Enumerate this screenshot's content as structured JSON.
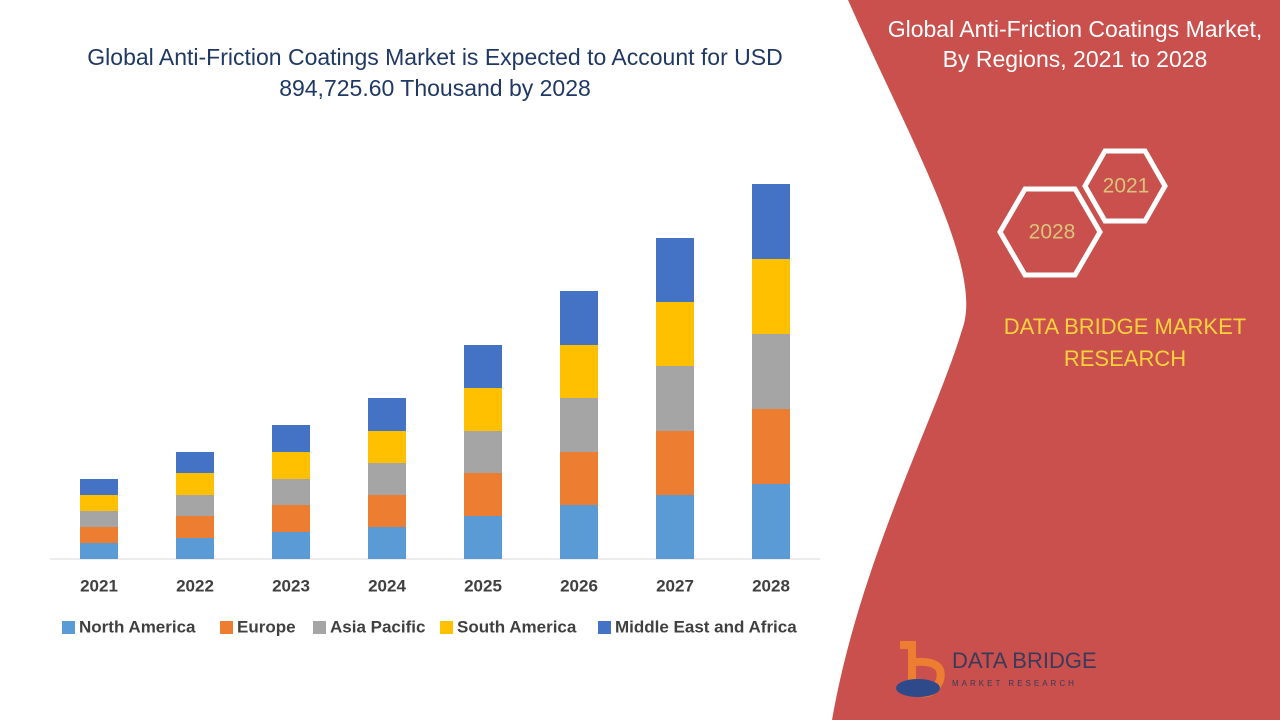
{
  "chart_data": {
    "type": "bar",
    "stacked": true,
    "title": "Global Anti-Friction Coatings Market is Expected to Account for USD 894,725.60 Thousand by 2028",
    "categories": [
      "2021",
      "2022",
      "2023",
      "2024",
      "2025",
      "2026",
      "2027",
      "2028"
    ],
    "series": [
      {
        "name": "North America",
        "color": "#5b9bd5",
        "values": [
          16,
          21,
          27,
          32,
          43,
          54,
          64,
          75
        ]
      },
      {
        "name": "Europe",
        "color": "#ed7d31",
        "values": [
          16,
          22,
          27,
          32,
          43,
          53,
          64,
          75
        ]
      },
      {
        "name": "Asia Pacific",
        "color": "#a5a5a5",
        "values": [
          16,
          21,
          26,
          32,
          42,
          54,
          65,
          75
        ]
      },
      {
        "name": "South America",
        "color": "#ffc000",
        "values": [
          16,
          22,
          27,
          32,
          43,
          53,
          64,
          75
        ]
      },
      {
        "name": "Middle East and Africa",
        "color": "#4472c4",
        "values": [
          16,
          21,
          27,
          33,
          43,
          54,
          64,
          75
        ]
      }
    ],
    "legend": "bottom"
  },
  "panel": {
    "title": "Global Anti-Friction Coatings Market, By Regions, 2021 to 2028",
    "hex_labels": [
      "2021",
      "2028"
    ],
    "brand": "DATA BRIDGE MARKET RESEARCH"
  },
  "logo": {
    "name": "DATA BRIDGE",
    "tagline": "MARKET RESEARCH"
  }
}
